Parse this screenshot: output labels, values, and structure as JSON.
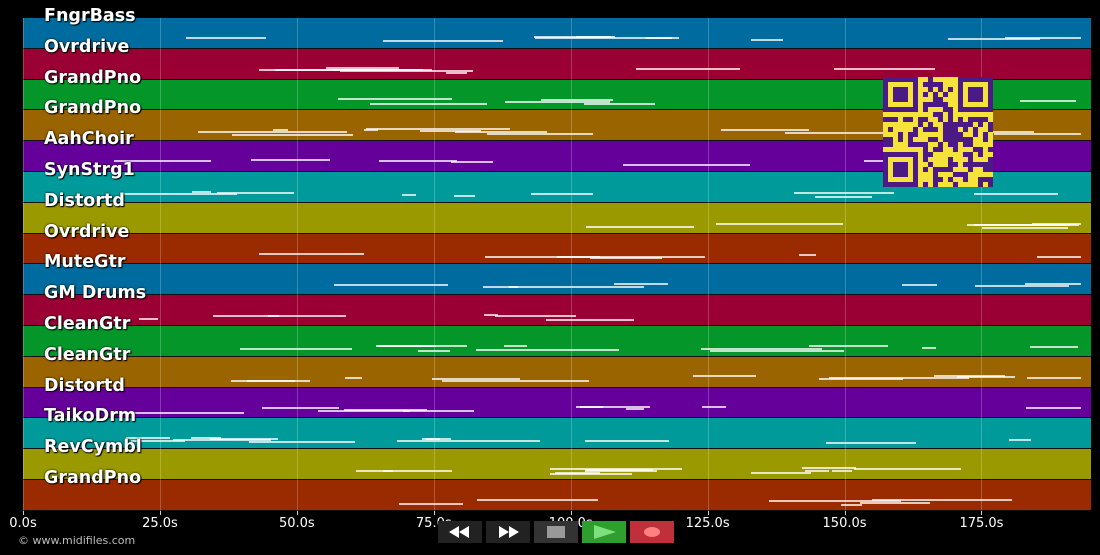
{
  "tracks": [
    {
      "name": "FngrBass",
      "color": "#006b9e"
    },
    {
      "name": "Ovrdrive",
      "color": "#9a0033"
    },
    {
      "name": "GrandPno",
      "color": "#05962a"
    },
    {
      "name": "GrandPno",
      "color": "#9a6400"
    },
    {
      "name": "AahChoir",
      "color": "#66009a"
    },
    {
      "name": "SynStrg1",
      "color": "#009a9a"
    },
    {
      "name": "Distortd",
      "color": "#9a9a00"
    },
    {
      "name": "Ovrdrive",
      "color": "#9a2b00"
    },
    {
      "name": "MuteGtr",
      "color": "#006b9e"
    },
    {
      "name": "GM Drums",
      "color": "#9a0033"
    },
    {
      "name": "CleanGtr",
      "color": "#05962a"
    },
    {
      "name": "CleanGtr",
      "color": "#9a6400"
    },
    {
      "name": "Distortd",
      "color": "#66009a"
    },
    {
      "name": "TaikoDrm",
      "color": "#009a9a"
    },
    {
      "name": "RevCymbl",
      "color": "#9a9a00"
    },
    {
      "name": "GrandPno",
      "color": "#9a2b00"
    }
  ],
  "timeline": {
    "duration_s": 195,
    "ticks": [
      "0.0s",
      "25.0s",
      "50.0s",
      "75.0s",
      "100.0s",
      "125.0s",
      "150.0s",
      "175.0s"
    ],
    "tick_values": [
      0,
      25,
      50,
      75,
      100,
      125,
      150,
      175
    ]
  },
  "transport": {
    "rewind_label": "rewind",
    "forward_label": "fast-forward",
    "stop_label": "stop",
    "play_label": "play",
    "record_label": "record",
    "play_color": "#2e9e2e",
    "record_color": "#c0303a"
  },
  "copyright": "© www.midifiles.com",
  "qr_color": "#f5e23a"
}
